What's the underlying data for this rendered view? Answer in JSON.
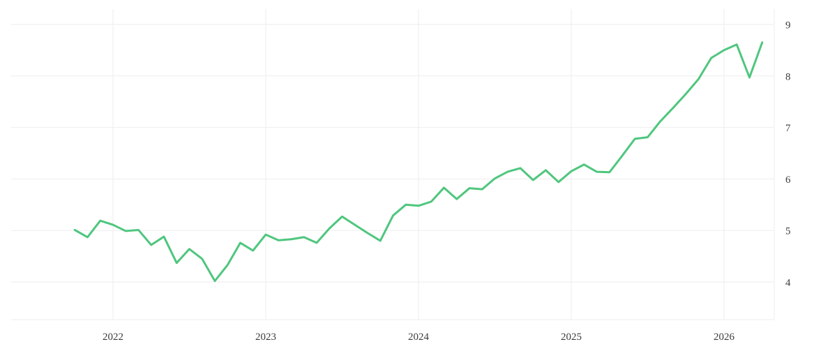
{
  "chart_data": {
    "type": "line",
    "title": "",
    "xlabel": "",
    "ylabel": "",
    "legend": "none",
    "grid": "on",
    "y_axis_side": "right",
    "x_tick_labels": [
      "2022",
      "2023",
      "2024",
      "2025",
      "2026"
    ],
    "y_tick_labels": [
      "9",
      "8",
      "7",
      "6",
      "5",
      "4"
    ],
    "y_ticks": [
      9,
      8,
      7,
      6,
      5,
      4
    ],
    "ylim": [
      3.25,
      9.3
    ],
    "xlim_months": [
      "2021-10",
      "2026-05"
    ],
    "series": [
      {
        "name": "value",
        "color": "#4fc67e",
        "x": [
          "2021-10",
          "2021-11",
          "2021-12",
          "2022-01",
          "2022-02",
          "2022-03",
          "2022-04",
          "2022-05",
          "2022-06",
          "2022-07",
          "2022-08",
          "2022-09",
          "2022-10",
          "2022-11",
          "2022-12",
          "2023-01",
          "2023-02",
          "2023-03",
          "2023-04",
          "2023-05",
          "2023-06",
          "2023-07",
          "2023-08",
          "2023-09",
          "2023-10",
          "2023-11",
          "2023-12",
          "2024-01",
          "2024-02",
          "2024-03",
          "2024-04",
          "2024-05",
          "2024-06",
          "2024-07",
          "2024-08",
          "2024-09",
          "2024-10",
          "2024-11",
          "2024-12",
          "2025-01",
          "2025-02",
          "2025-03",
          "2025-04",
          "2025-05",
          "2025-06",
          "2025-07",
          "2025-08",
          "2025-09",
          "2025-10",
          "2025-11",
          "2025-12",
          "2026-01",
          "2026-02",
          "2026-03",
          "2026-04"
        ],
        "values": [
          5.01,
          4.87,
          5.19,
          5.11,
          4.99,
          5.01,
          4.72,
          4.88,
          4.37,
          4.64,
          4.45,
          4.02,
          4.33,
          4.76,
          4.61,
          4.92,
          4.81,
          4.83,
          4.87,
          4.76,
          5.04,
          5.27,
          5.11,
          4.95,
          4.8,
          5.29,
          5.5,
          5.48,
          5.56,
          5.83,
          5.61,
          5.82,
          5.8,
          6.01,
          6.14,
          6.21,
          5.98,
          6.17,
          5.94,
          6.15,
          6.28,
          6.14,
          6.13,
          6.45,
          6.78,
          6.81,
          7.12,
          7.38,
          7.65,
          7.94,
          8.35,
          8.5,
          8.61,
          7.97,
          8.65
        ]
      }
    ]
  },
  "style": {
    "background": "#ffffff",
    "grid_color": "#ededed",
    "label_color": "#3c3c3c",
    "line_color": "#4fc67e"
  }
}
